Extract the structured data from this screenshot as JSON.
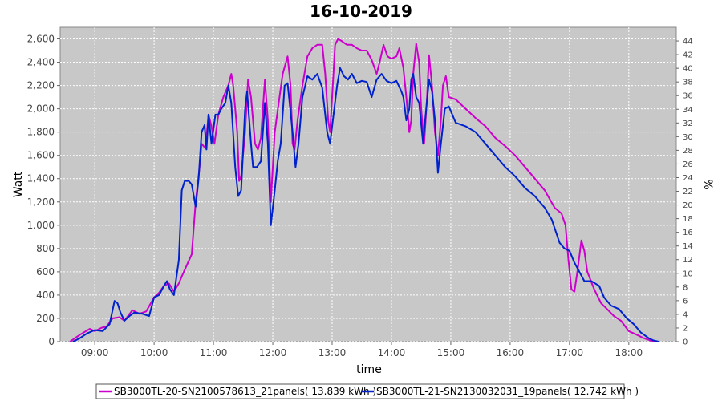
{
  "chart_data": {
    "type": "line",
    "title": "16-10-2019",
    "xlabel": "time",
    "ylabel": "Watt",
    "y2label": "%",
    "xlim": [
      "08:25",
      "18:48"
    ],
    "ylim": [
      0,
      2700
    ],
    "y2lim": [
      0,
      46
    ],
    "x_ticks": [
      "09:00",
      "10:00",
      "11:00",
      "12:00",
      "13:00",
      "14:00",
      "15:00",
      "16:00",
      "17:00",
      "18:00"
    ],
    "y_ticks": [
      0,
      200,
      400,
      600,
      800,
      1000,
      1200,
      1400,
      1600,
      1800,
      2000,
      2200,
      2400,
      2600
    ],
    "y_tick_labels": [
      "0",
      "200",
      "400",
      "600",
      "800",
      "1,000",
      "1,200",
      "1,400",
      "1,600",
      "1,800",
      "2,000",
      "2,200",
      "2,400",
      "2,600"
    ],
    "y2_ticks": [
      0,
      2,
      4,
      6,
      8,
      10,
      12,
      14,
      16,
      18,
      20,
      22,
      24,
      26,
      28,
      30,
      32,
      34,
      36,
      38,
      40,
      42,
      44
    ],
    "grid": true,
    "legend_position": "bottom",
    "series": [
      {
        "name": "SB3000TL-20-SN2100578613_21panels( 13.839 kWh )",
        "color": "#cc00cc",
        "points": [
          [
            "08:35",
            0
          ],
          [
            "08:45",
            60
          ],
          [
            "08:55",
            110
          ],
          [
            "09:00",
            90
          ],
          [
            "09:07",
            120
          ],
          [
            "09:12",
            130
          ],
          [
            "09:18",
            200
          ],
          [
            "09:25",
            210
          ],
          [
            "09:30",
            180
          ],
          [
            "09:38",
            270
          ],
          [
            "09:45",
            240
          ],
          [
            "09:52",
            260
          ],
          [
            "10:00",
            380
          ],
          [
            "10:05",
            420
          ],
          [
            "10:10",
            480
          ],
          [
            "10:15",
            500
          ],
          [
            "10:20",
            430
          ],
          [
            "10:25",
            500
          ],
          [
            "10:30",
            600
          ],
          [
            "10:38",
            750
          ],
          [
            "10:42",
            1200
          ],
          [
            "10:46",
            1500
          ],
          [
            "10:48",
            1700
          ],
          [
            "10:52",
            1660
          ],
          [
            "10:55",
            1950
          ],
          [
            "10:58",
            1850
          ],
          [
            "11:01",
            1700
          ],
          [
            "11:05",
            1950
          ],
          [
            "11:10",
            2100
          ],
          [
            "11:15",
            2200
          ],
          [
            "11:18",
            2300
          ],
          [
            "11:20",
            2200
          ],
          [
            "11:24",
            1800
          ],
          [
            "11:26",
            1380
          ],
          [
            "11:28",
            1420
          ],
          [
            "11:32",
            1800
          ],
          [
            "11:35",
            2250
          ],
          [
            "11:38",
            2100
          ],
          [
            "11:42",
            1700
          ],
          [
            "11:45",
            1650
          ],
          [
            "11:48",
            1750
          ],
          [
            "11:52",
            2250
          ],
          [
            "11:55",
            1900
          ],
          [
            "11:58",
            1200
          ],
          [
            "12:02",
            1800
          ],
          [
            "12:06",
            2050
          ],
          [
            "12:10",
            2300
          ],
          [
            "12:15",
            2450
          ],
          [
            "12:18",
            2200
          ],
          [
            "12:20",
            1700
          ],
          [
            "12:22",
            1650
          ],
          [
            "12:25",
            1900
          ],
          [
            "12:30",
            2200
          ],
          [
            "12:35",
            2450
          ],
          [
            "12:40",
            2520
          ],
          [
            "12:45",
            2550
          ],
          [
            "12:50",
            2550
          ],
          [
            "12:53",
            2300
          ],
          [
            "12:56",
            1900
          ],
          [
            "12:58",
            1800
          ],
          [
            "13:00",
            2100
          ],
          [
            "13:03",
            2550
          ],
          [
            "13:06",
            2600
          ],
          [
            "13:10",
            2580
          ],
          [
            "13:15",
            2550
          ],
          [
            "13:20",
            2550
          ],
          [
            "13:25",
            2520
          ],
          [
            "13:30",
            2500
          ],
          [
            "13:35",
            2500
          ],
          [
            "13:40",
            2420
          ],
          [
            "13:45",
            2300
          ],
          [
            "13:48",
            2400
          ],
          [
            "13:52",
            2550
          ],
          [
            "13:56",
            2450
          ],
          [
            "14:00",
            2430
          ],
          [
            "14:05",
            2450
          ],
          [
            "14:08",
            2520
          ],
          [
            "14:12",
            2350
          ],
          [
            "14:15",
            2100
          ],
          [
            "14:18",
            1800
          ],
          [
            "14:20",
            1900
          ],
          [
            "14:22",
            2300
          ],
          [
            "14:25",
            2560
          ],
          [
            "14:28",
            2400
          ],
          [
            "14:30",
            2000
          ],
          [
            "14:33",
            1700
          ],
          [
            "14:36",
            2100
          ],
          [
            "14:38",
            2460
          ],
          [
            "14:41",
            2200
          ],
          [
            "14:44",
            1800
          ],
          [
            "14:47",
            1600
          ],
          [
            "14:50",
            1900
          ],
          [
            "14:52",
            2200
          ],
          [
            "14:55",
            2280
          ],
          [
            "14:58",
            2100
          ],
          [
            "15:05",
            2080
          ],
          [
            "15:15",
            2000
          ],
          [
            "15:25",
            1920
          ],
          [
            "15:35",
            1850
          ],
          [
            "15:45",
            1750
          ],
          [
            "15:55",
            1680
          ],
          [
            "16:05",
            1600
          ],
          [
            "16:15",
            1500
          ],
          [
            "16:25",
            1400
          ],
          [
            "16:35",
            1300
          ],
          [
            "16:45",
            1150
          ],
          [
            "16:52",
            1100
          ],
          [
            "16:56",
            1000
          ],
          [
            "16:59",
            700
          ],
          [
            "17:02",
            450
          ],
          [
            "17:05",
            430
          ],
          [
            "17:08",
            600
          ],
          [
            "17:12",
            870
          ],
          [
            "17:15",
            780
          ],
          [
            "17:18",
            600
          ],
          [
            "17:25",
            450
          ],
          [
            "17:32",
            330
          ],
          [
            "17:38",
            280
          ],
          [
            "17:45",
            220
          ],
          [
            "17:52",
            180
          ],
          [
            "18:00",
            90
          ],
          [
            "18:08",
            60
          ],
          [
            "18:15",
            30
          ],
          [
            "18:22",
            10
          ],
          [
            "18:28",
            0
          ]
        ]
      },
      {
        "name": "SB3000TL-21-SN2130032031_19panels( 12.742 kWh )",
        "color": "#0022cc",
        "points": [
          [
            "08:38",
            0
          ],
          [
            "08:45",
            30
          ],
          [
            "08:52",
            70
          ],
          [
            "09:00",
            100
          ],
          [
            "09:08",
            90
          ],
          [
            "09:15",
            150
          ],
          [
            "09:20",
            350
          ],
          [
            "09:23",
            330
          ],
          [
            "09:26",
            250
          ],
          [
            "09:30",
            180
          ],
          [
            "09:35",
            220
          ],
          [
            "09:40",
            250
          ],
          [
            "09:48",
            240
          ],
          [
            "09:55",
            220
          ],
          [
            "10:00",
            380
          ],
          [
            "10:05",
            400
          ],
          [
            "10:10",
            480
          ],
          [
            "10:13",
            520
          ],
          [
            "10:16",
            450
          ],
          [
            "10:20",
            400
          ],
          [
            "10:25",
            700
          ],
          [
            "10:28",
            1300
          ],
          [
            "10:31",
            1380
          ],
          [
            "10:35",
            1380
          ],
          [
            "10:38",
            1350
          ],
          [
            "10:42",
            1160
          ],
          [
            "10:45",
            1400
          ],
          [
            "10:48",
            1800
          ],
          [
            "10:51",
            1860
          ],
          [
            "10:53",
            1650
          ],
          [
            "10:55",
            1950
          ],
          [
            "10:58",
            1700
          ],
          [
            "11:02",
            1950
          ],
          [
            "11:05",
            1950
          ],
          [
            "11:08",
            2000
          ],
          [
            "11:12",
            2050
          ],
          [
            "11:15",
            2200
          ],
          [
            "11:18",
            2050
          ],
          [
            "11:22",
            1500
          ],
          [
            "11:25",
            1250
          ],
          [
            "11:28",
            1300
          ],
          [
            "11:32",
            2000
          ],
          [
            "11:34",
            2150
          ],
          [
            "11:38",
            1700
          ],
          [
            "11:40",
            1500
          ],
          [
            "11:44",
            1500
          ],
          [
            "11:48",
            1550
          ],
          [
            "11:52",
            2050
          ],
          [
            "11:55",
            1700
          ],
          [
            "11:58",
            1000
          ],
          [
            "12:02",
            1300
          ],
          [
            "12:05",
            1550
          ],
          [
            "12:08",
            1700
          ],
          [
            "12:12",
            2200
          ],
          [
            "12:15",
            2220
          ],
          [
            "12:20",
            1800
          ],
          [
            "12:23",
            1500
          ],
          [
            "12:26",
            1700
          ],
          [
            "12:30",
            2100
          ],
          [
            "12:35",
            2280
          ],
          [
            "12:40",
            2250
          ],
          [
            "12:45",
            2300
          ],
          [
            "12:50",
            2180
          ],
          [
            "12:55",
            1800
          ],
          [
            "12:58",
            1700
          ],
          [
            "13:00",
            1850
          ],
          [
            "13:05",
            2200
          ],
          [
            "13:08",
            2350
          ],
          [
            "13:12",
            2280
          ],
          [
            "13:16",
            2250
          ],
          [
            "13:20",
            2300
          ],
          [
            "13:25",
            2220
          ],
          [
            "13:30",
            2240
          ],
          [
            "13:35",
            2230
          ],
          [
            "13:40",
            2100
          ],
          [
            "13:45",
            2250
          ],
          [
            "13:50",
            2300
          ],
          [
            "13:55",
            2240
          ],
          [
            "14:00",
            2220
          ],
          [
            "14:05",
            2240
          ],
          [
            "14:10",
            2150
          ],
          [
            "14:12",
            2100
          ],
          [
            "14:15",
            1900
          ],
          [
            "14:18",
            2000
          ],
          [
            "14:20",
            2250
          ],
          [
            "14:22",
            2300
          ],
          [
            "14:25",
            2100
          ],
          [
            "14:28",
            2050
          ],
          [
            "14:32",
            1700
          ],
          [
            "14:34",
            1900
          ],
          [
            "14:38",
            2250
          ],
          [
            "14:41",
            2150
          ],
          [
            "14:44",
            1900
          ],
          [
            "14:47",
            1450
          ],
          [
            "14:50",
            1700
          ],
          [
            "14:54",
            2000
          ],
          [
            "14:58",
            2020
          ],
          [
            "15:05",
            1880
          ],
          [
            "15:15",
            1850
          ],
          [
            "15:25",
            1800
          ],
          [
            "15:35",
            1700
          ],
          [
            "15:45",
            1600
          ],
          [
            "15:55",
            1500
          ],
          [
            "16:05",
            1420
          ],
          [
            "16:15",
            1320
          ],
          [
            "16:25",
            1250
          ],
          [
            "16:35",
            1150
          ],
          [
            "16:42",
            1050
          ],
          [
            "16:50",
            850
          ],
          [
            "16:55",
            800
          ],
          [
            "17:00",
            780
          ],
          [
            "17:05",
            680
          ],
          [
            "17:10",
            600
          ],
          [
            "17:15",
            520
          ],
          [
            "17:22",
            520
          ],
          [
            "17:30",
            480
          ],
          [
            "17:35",
            380
          ],
          [
            "17:42",
            310
          ],
          [
            "17:50",
            280
          ],
          [
            "17:58",
            200
          ],
          [
            "18:05",
            150
          ],
          [
            "18:12",
            80
          ],
          [
            "18:20",
            30
          ],
          [
            "18:25",
            10
          ],
          [
            "18:30",
            0
          ]
        ]
      }
    ]
  }
}
